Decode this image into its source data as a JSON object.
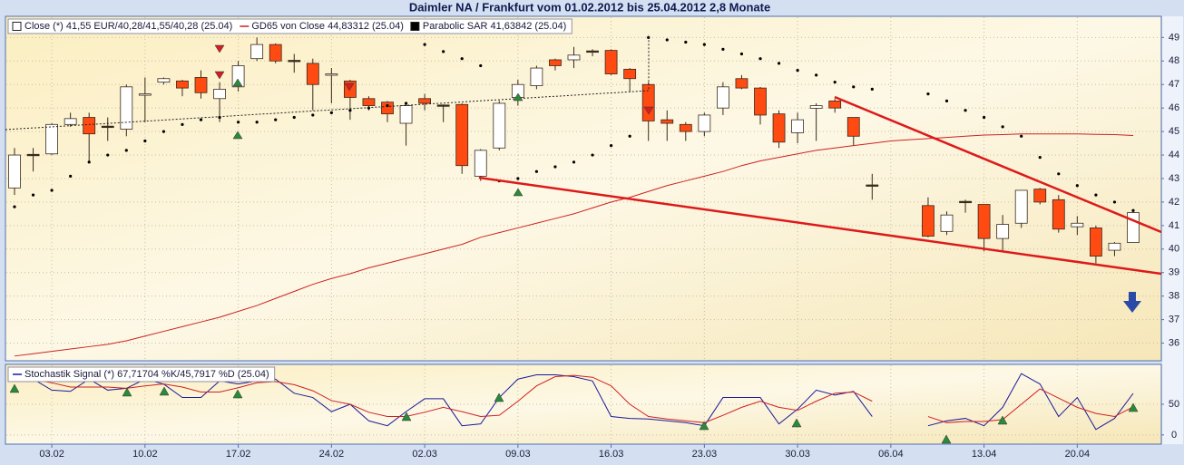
{
  "chart_data": [
    {
      "type": "candlestick",
      "title": "Daimler NA / Frankfurt vom 01.02.2012 bis 25.04.2012 2,8 Monate",
      "ylim": [
        35.25,
        49.9
      ],
      "yticks": [
        36,
        37,
        38,
        39,
        40,
        41,
        42,
        43,
        44,
        45,
        46,
        47,
        48,
        49
      ],
      "grid": true,
      "series": [
        {
          "name": "Close (*) 41,55 EUR/40,28/41,55/40,28 (25.04)",
          "type": "candle",
          "up_color": "#ffffff",
          "down_color": "#ff4a12",
          "edge_color": "#3a2a1a",
          "open": [
            42.6,
            44.0,
            44.05,
            45.3,
            45.6,
            45.2,
            45.1,
            46.55,
            47.1,
            47.15,
            47.3,
            46.4,
            46.9,
            48.1,
            48.7,
            48.0,
            47.9,
            47.4,
            47.15,
            46.4,
            46.25,
            45.35,
            46.4,
            46.1,
            46.15,
            43.1,
            44.3,
            46.45,
            46.95,
            48.05,
            48.05,
            48.4,
            48.45,
            47.65,
            47.0,
            45.5,
            45.3,
            45.0,
            46.0,
            47.25,
            46.85,
            45.75,
            44.95,
            45.99,
            46.3,
            45.6,
            42.7,
            null,
            null,
            41.85,
            40.75,
            42.0,
            41.9,
            40.45,
            41.1,
            42.55,
            42.1,
            40.95,
            40.9,
            39.95,
            40.28
          ],
          "high": [
            44.3,
            44.3,
            45.35,
            45.8,
            45.8,
            45.6,
            47.0,
            47.3,
            47.3,
            47.2,
            47.6,
            47.1,
            48.0,
            49.0,
            48.75,
            48.3,
            48.1,
            47.7,
            47.2,
            46.5,
            46.3,
            46.2,
            46.6,
            46.15,
            46.2,
            44.25,
            46.3,
            47.2,
            47.8,
            48.1,
            48.6,
            48.5,
            48.5,
            47.7,
            47.1,
            45.9,
            45.4,
            45.8,
            47.1,
            47.4,
            46.9,
            45.9,
            45.8,
            46.2,
            46.4,
            45.6,
            43.2,
            null,
            null,
            42.2,
            41.6,
            42.1,
            41.9,
            41.45,
            42.5,
            42.6,
            42.3,
            41.4,
            41.0,
            40.3,
            41.7
          ],
          "low": [
            42.3,
            43.3,
            44.0,
            45.2,
            43.7,
            44.6,
            44.8,
            45.4,
            47.0,
            46.5,
            46.4,
            45.4,
            46.7,
            48.0,
            47.9,
            47.5,
            45.9,
            46.2,
            45.5,
            45.9,
            45.4,
            44.4,
            45.9,
            45.4,
            43.2,
            42.9,
            44.2,
            46.1,
            46.8,
            47.6,
            47.7,
            48.2,
            47.4,
            46.7,
            44.6,
            44.6,
            44.6,
            44.8,
            45.7,
            46.8,
            45.3,
            44.3,
            44.5,
            44.6,
            45.8,
            44.4,
            42.1,
            null,
            null,
            40.5,
            40.6,
            41.55,
            39.9,
            39.9,
            40.9,
            41.9,
            40.7,
            40.6,
            39.4,
            39.7,
            40.28
          ],
          "close": [
            44.0,
            44.0,
            45.3,
            45.55,
            44.9,
            45.2,
            46.9,
            46.6,
            47.25,
            46.85,
            46.65,
            46.8,
            47.8,
            48.7,
            48.0,
            48.0,
            47.0,
            47.45,
            46.45,
            46.1,
            45.75,
            46.1,
            46.2,
            46.1,
            43.55,
            44.2,
            46.2,
            47.0,
            47.7,
            47.8,
            48.25,
            48.4,
            47.45,
            47.25,
            45.45,
            45.35,
            45.0,
            45.7,
            46.9,
            46.85,
            45.7,
            44.55,
            45.5,
            46.1,
            46.0,
            44.8,
            42.7,
            null,
            null,
            40.55,
            41.45,
            42.0,
            40.45,
            41.05,
            42.5,
            42.0,
            40.85,
            41.1,
            39.7,
            40.25,
            41.55
          ]
        },
        {
          "name": "GD65 von Close 44,83312 (25.04)",
          "type": "line",
          "color": "#cc2222",
          "values": [
            35.45,
            35.55,
            35.65,
            35.75,
            35.85,
            35.95,
            36.1,
            36.3,
            36.5,
            36.7,
            36.9,
            37.1,
            37.35,
            37.6,
            37.9,
            38.2,
            38.5,
            38.75,
            38.95,
            39.2,
            39.4,
            39.6,
            39.8,
            40.0,
            40.2,
            40.5,
            40.7,
            40.9,
            41.1,
            41.3,
            41.5,
            41.75,
            42.0,
            42.2,
            42.45,
            42.7,
            42.9,
            43.1,
            43.3,
            43.55,
            43.75,
            43.9,
            44.05,
            44.2,
            44.3,
            44.4,
            44.5,
            44.6,
            44.65,
            44.7,
            44.75,
            44.8,
            44.85,
            44.87,
            44.9,
            44.9,
            44.9,
            44.9,
            44.88,
            44.87,
            44.83
          ]
        },
        {
          "name": "Parabolic SAR 41,63842 (25.04)",
          "type": "dots",
          "color": "#000000",
          "values": [
            41.8,
            42.3,
            42.5,
            43.1,
            43.7,
            44.0,
            44.2,
            44.6,
            45.0,
            45.3,
            45.5,
            45.6,
            45.4,
            45.4,
            45.5,
            45.6,
            45.7,
            45.8,
            45.9,
            46.0,
            46.1,
            46.2,
            48.7,
            48.4,
            48.1,
            47.8,
            42.9,
            43.0,
            43.3,
            43.5,
            43.7,
            44.0,
            44.4,
            44.8,
            49.0,
            48.9,
            48.8,
            48.7,
            48.5,
            48.3,
            48.1,
            47.9,
            47.6,
            47.4,
            47.1,
            46.9,
            46.8,
            null,
            null,
            46.6,
            46.3,
            45.9,
            45.6,
            45.2,
            44.8,
            43.9,
            43.2,
            42.7,
            42.3,
            42.0,
            41.64
          ]
        }
      ]
    },
    {
      "type": "line",
      "legend": "Stochastik Signal (*) 67,71704 %K/45,7917 %D (25.04)",
      "categories": [
        null,
        null,
        "03.02",
        null,
        null,
        null,
        null,
        "10.02",
        null,
        null,
        null,
        null,
        "17.02",
        null,
        null,
        null,
        null,
        "24.02",
        null,
        null,
        null,
        null,
        "02.03",
        null,
        null,
        null,
        null,
        "09.03",
        null,
        null,
        null,
        null,
        "16.03",
        null,
        null,
        null,
        null,
        "23.03",
        null,
        null,
        null,
        null,
        "30.03",
        null,
        null,
        null,
        null,
        "06.04",
        null,
        null,
        null,
        null,
        "13.04",
        null,
        null,
        null,
        null,
        "20.04",
        null,
        null,
        null
      ],
      "ylim": [
        -15,
        115
      ],
      "yticks": [
        0,
        50
      ],
      "grid": true,
      "series": [
        {
          "color": "#1a1a9a",
          "values": [
            94,
            91,
            73,
            71,
            91,
            73,
            76,
            91,
            83,
            61,
            61,
            88,
            83,
            88,
            91,
            68,
            61,
            38,
            50,
            23,
            15,
            38,
            59,
            59,
            15,
            18,
            61,
            91,
            98,
            98,
            95,
            88,
            30,
            27,
            26,
            23,
            20,
            15,
            61,
            61,
            61,
            18,
            42,
            73,
            65,
            71,
            30,
            null,
            null,
            15,
            23,
            27,
            15,
            45,
            100,
            83,
            30,
            61,
            9,
            27,
            67.72
          ]
        },
        {
          "color": "#d02020",
          "values": [
            90,
            90,
            85,
            78,
            78,
            78,
            76,
            80,
            83,
            78,
            70,
            70,
            77,
            85,
            87,
            82,
            72,
            56,
            50,
            37,
            30,
            30,
            37,
            45,
            38,
            30,
            32,
            55,
            80,
            95,
            97,
            94,
            80,
            50,
            30,
            26,
            23,
            20,
            32,
            45,
            55,
            45,
            40,
            55,
            68,
            70,
            55,
            null,
            null,
            30,
            20,
            22,
            22,
            25,
            50,
            75,
            60,
            45,
            35,
            30,
            45.79
          ]
        }
      ]
    }
  ]
}
